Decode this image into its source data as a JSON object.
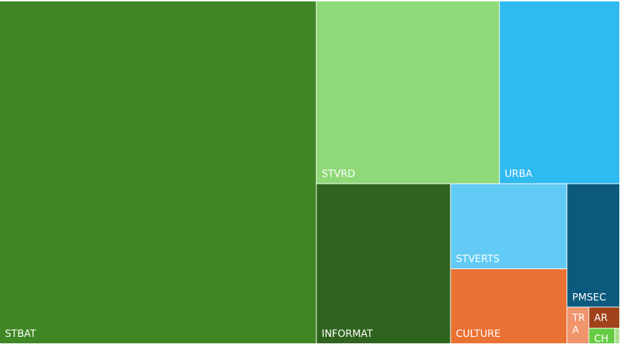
{
  "chart_data": {
    "type": "treemap",
    "categories": [
      "STBAT",
      "STVRD",
      "URBA",
      "INFORMAT",
      "STVERTS",
      "CULTURE",
      "PMSEC",
      "TRA",
      "AR",
      "CHIM",
      null
    ],
    "values": [
      2168,
      668,
      439,
      429,
      198,
      174,
      130,
      16,
      13,
      8,
      1.5
    ],
    "colors": [
      "#3f8624",
      "#8fd978",
      "#2fbaf0",
      "#2f641e",
      "#62cbf5",
      "#ea7134",
      "#0b5a7e",
      "#f0946b",
      "#a0431a",
      "#66cc44",
      "#a8e08f"
    ]
  }
}
